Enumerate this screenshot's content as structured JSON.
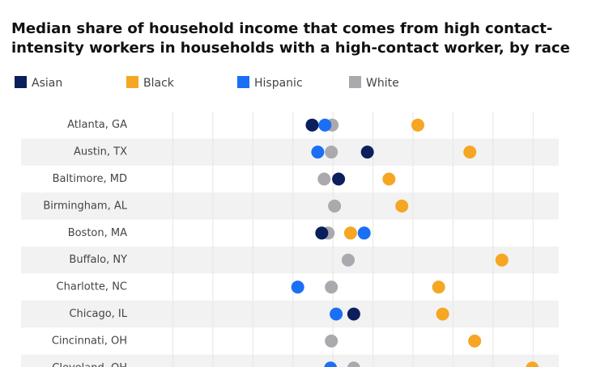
{
  "chart_data": {
    "type": "dot",
    "title": "Median share of household income that comes from high contact-intensity workers in households with a high-contact worker, by race",
    "categories": [
      "Atlanta, GA",
      "Austin, TX",
      "Baltimore, MD",
      "Birmingham, AL",
      "Boston, MA",
      "Buffalo, NY",
      "Charlotte, NC",
      "Chicago, IL",
      "Cincinnati, OH",
      "Cleveland, OH"
    ],
    "series": [
      {
        "name": "Asian",
        "color": "#0b1f5c",
        "values": [
          22.4,
          29.3,
          25.7,
          null,
          23.6,
          null,
          null,
          27.6,
          null,
          null
        ]
      },
      {
        "name": "Black",
        "color": "#f5a623",
        "values": [
          35.6,
          42.1,
          32.0,
          33.6,
          27.2,
          46.1,
          38.2,
          38.7,
          42.7,
          49.9
        ]
      },
      {
        "name": "Hispanic",
        "color": "#1a6ff5",
        "values": [
          24.0,
          23.1,
          null,
          null,
          28.9,
          null,
          20.6,
          25.4,
          null,
          24.7
        ]
      },
      {
        "name": "White",
        "color": "#a9a9ae",
        "values": [
          24.9,
          24.8,
          23.9,
          25.2,
          24.4,
          26.9,
          24.8,
          null,
          24.8,
          27.6
        ]
      }
    ],
    "xlim": [
      0,
      53
    ],
    "xticks": [
      5,
      10,
      15,
      20,
      25,
      30,
      35,
      40,
      45,
      50
    ],
    "grid": true
  }
}
